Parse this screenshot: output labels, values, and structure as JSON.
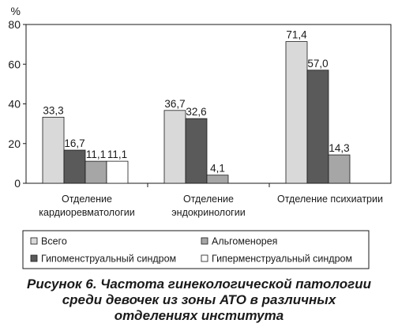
{
  "chart_data": {
    "type": "bar",
    "ylabel": "%",
    "ylim": [
      0,
      80
    ],
    "yticks": [
      "0",
      "20",
      "40",
      "60",
      "80"
    ],
    "categories": [
      [
        "Отделение",
        "кардиоревматологии"
      ],
      [
        "Отделение",
        "эндокринологии"
      ],
      [
        "Отделение психиатрии"
      ]
    ],
    "series": [
      {
        "name": "Всего",
        "color": "#d9d9d9",
        "values": [
          33.3,
          36.7,
          71.4
        ],
        "labels": [
          "33,3",
          "36,7",
          "71,4"
        ]
      },
      {
        "name": "Гипоменструальный синдром",
        "color": "#5a5a5a",
        "values": [
          16.7,
          32.6,
          57.0
        ],
        "labels": [
          "16,7",
          "32,6",
          "57,0"
        ]
      },
      {
        "name": "Альгоменорея",
        "color": "#a6a6a6",
        "values": [
          11.1,
          4.1,
          14.3
        ],
        "labels": [
          "11,1",
          "4,1",
          "14,3"
        ]
      },
      {
        "name": "Гиперменструальный синдром",
        "color": "#ffffff",
        "values": [
          11.1,
          null,
          null
        ],
        "labels": [
          "11,1",
          null,
          null
        ]
      }
    ],
    "legend_placement": "bottom"
  },
  "caption": {
    "lines": [
      "Рисунок 6. Частота гинекологической патологии",
      "среди девочек из зоны АТО в различных",
      "отделениях института"
    ]
  }
}
